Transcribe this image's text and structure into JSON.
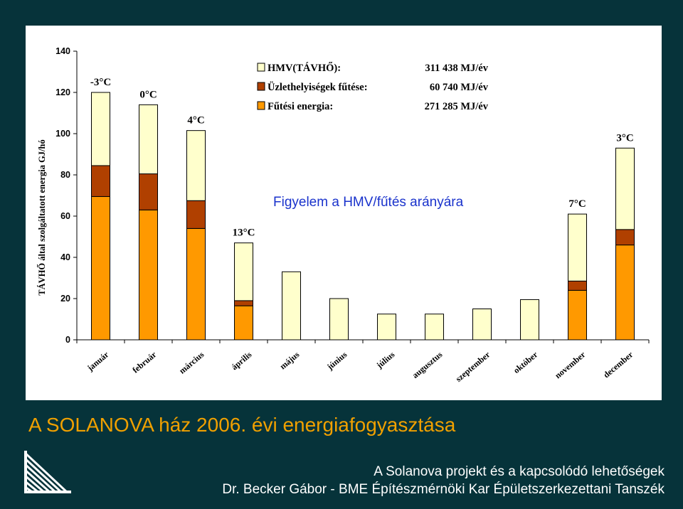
{
  "slide": {
    "title": "A SOLANOVA ház 2006. évi energiafogyasztása",
    "footer_line1": "A Solanova projekt és a kapcsolódó lehetőségek",
    "footer_line2": "Dr. Becker Gábor - BME Építészmérnöki Kar Épületszerkezettani Tanszék"
  },
  "chart_data": {
    "type": "bar",
    "stacked": true,
    "ylabel": "TÁVHŐ által szolgáltatott energia GJ/hó",
    "ylim": [
      0,
      140
    ],
    "yticks": [
      0,
      20,
      40,
      60,
      80,
      100,
      120,
      140
    ],
    "categories": [
      "január",
      "február",
      "március",
      "április",
      "május",
      "június",
      "július",
      "augusztus",
      "szeptember",
      "október",
      "november",
      "december"
    ],
    "series": [
      {
        "name": "Fűtési energia:",
        "amount": "271 285 MJ/év",
        "color": "#ff9900",
        "values": [
          69.5,
          63,
          54,
          16.5,
          0,
          0,
          0,
          0,
          0,
          0,
          24,
          46
        ]
      },
      {
        "name": "Üzlethelyiségek fűtése:",
        "amount": "60 740 MJ/év",
        "color": "#b04000",
        "values": [
          15,
          17.5,
          13.5,
          2.5,
          0,
          0,
          0,
          0,
          0,
          0,
          4.5,
          7.5
        ]
      },
      {
        "name": "HMV(TÁVHŐ):",
        "amount": "311 438 MJ/év",
        "color": "#ffffcc",
        "values": [
          35.5,
          33.5,
          34,
          28,
          33,
          20,
          12.5,
          12.5,
          15,
          19.5,
          32.5,
          39.5
        ]
      }
    ],
    "temperature_labels": [
      {
        "month": "január",
        "text": "-3°C"
      },
      {
        "month": "február",
        "text": "0°C"
      },
      {
        "month": "március",
        "text": "4°C"
      },
      {
        "month": "április",
        "text": "13°C"
      },
      {
        "month": "november",
        "text": "7°C"
      },
      {
        "month": "december",
        "text": "3°C"
      }
    ],
    "annotation": "Figyelem a HMV/fűtés arányára",
    "legend_position": "top-center"
  },
  "colors": {
    "background": "#06333a",
    "title": "#f0a000",
    "annotation": "#1a33cc"
  }
}
